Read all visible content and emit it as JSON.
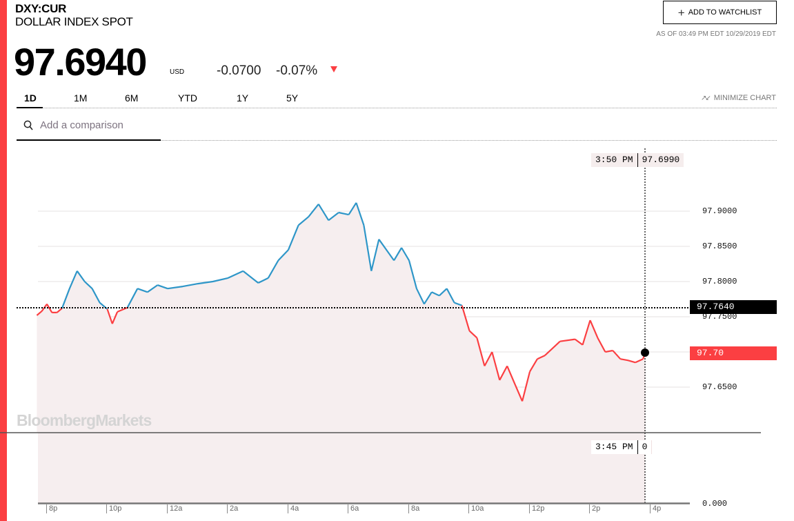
{
  "header": {
    "ticker": "DXY:CUR",
    "name": "DOLLAR INDEX SPOT",
    "price": "97.6940",
    "currency": "USD",
    "change": "-0.0700",
    "change_pct": "-0.07%",
    "direction": "down",
    "watchlist_label": "ADD TO WATCHLIST",
    "as_of": "AS OF 03:49 PM EDT 10/29/2019 EDT"
  },
  "tabs": [
    {
      "label": "1D",
      "active": true
    },
    {
      "label": "1M",
      "active": false
    },
    {
      "label": "6M",
      "active": false
    },
    {
      "label": "YTD",
      "active": false
    },
    {
      "label": "1Y",
      "active": false
    },
    {
      "label": "5Y",
      "active": false
    }
  ],
  "minimize_label": "MINIMIZE CHART",
  "compare": {
    "placeholder": "Add a comparison"
  },
  "tooltip_top": {
    "time": "3:50 PM",
    "value": "97.6990"
  },
  "tooltip_bottom": {
    "time": "3:45 PM",
    "value": "0"
  },
  "reference_label": "97.7640",
  "last_label": "97.70",
  "watermark": "BloombergMarkets",
  "colors": {
    "accent": "#fb3f42",
    "up_line": "#2e96c8",
    "down_line": "#fb3f42",
    "area_fill": "#f6eeef"
  },
  "chart_data": {
    "type": "line",
    "title": "DXY:CUR DOLLAR INDEX SPOT 1D",
    "xlabel": "",
    "ylabel": "",
    "x_ticks": [
      "8p",
      "10p",
      "12a",
      "2a",
      "4a",
      "6a",
      "8a",
      "10a",
      "12p",
      "2p",
      "4p"
    ],
    "y_ticks": [
      "97.9000",
      "97.8500",
      "97.8000",
      "97.7500",
      "97.7000",
      "97.6500"
    ],
    "ylim": [
      97.62,
      97.93
    ],
    "reference_line": 97.764,
    "last_value": 97.7,
    "volume_axis": {
      "ticks": [
        "0.000"
      ],
      "value_at_cursor": 0
    },
    "cursor": {
      "time": "3:50 PM",
      "value": 97.699
    },
    "series": [
      {
        "name": "DXY price",
        "x": [
          "7:40p",
          "7:50p",
          "8:00p",
          "8:10p",
          "8:20p",
          "8:30p",
          "8:45p",
          "9:00p",
          "9:15p",
          "9:30p",
          "9:45p",
          "10:00p",
          "10:10p",
          "10:20p",
          "10:40p",
          "11:00p",
          "11:20p",
          "11:40p",
          "12:00a",
          "12:30a",
          "1:00a",
          "1:30a",
          "2:00a",
          "2:30a",
          "3:00a",
          "3:20a",
          "3:40a",
          "4:00a",
          "4:20a",
          "4:40a",
          "5:00a",
          "5:20a",
          "5:40a",
          "6:00a",
          "6:15a",
          "6:30a",
          "6:45a",
          "7:00a",
          "7:15a",
          "7:30a",
          "7:45a",
          "8:00a",
          "8:15a",
          "8:30a",
          "8:45a",
          "9:00a",
          "9:15a",
          "9:30a",
          "9:45a",
          "10:00a",
          "10:15a",
          "10:30a",
          "10:45a",
          "11:00a",
          "11:15a",
          "11:30a",
          "11:45a",
          "12:00p",
          "12:15p",
          "12:30p",
          "1:00p",
          "1:30p",
          "1:45p",
          "2:00p",
          "2:15p",
          "2:30p",
          "2:45p",
          "3:00p",
          "3:15p",
          "3:30p",
          "3:45p",
          "3:50p"
        ],
        "values": [
          97.752,
          97.758,
          97.768,
          97.756,
          97.756,
          97.762,
          97.79,
          97.815,
          97.8,
          97.79,
          97.77,
          97.761,
          97.74,
          97.757,
          97.763,
          97.79,
          97.785,
          97.795,
          97.79,
          97.793,
          97.797,
          97.8,
          97.805,
          97.815,
          97.798,
          97.805,
          97.83,
          97.845,
          97.88,
          97.892,
          97.91,
          97.887,
          97.898,
          97.895,
          97.912,
          97.88,
          97.815,
          97.86,
          97.845,
          97.83,
          97.848,
          97.83,
          97.79,
          97.768,
          97.785,
          97.78,
          97.79,
          97.77,
          97.766,
          97.73,
          97.72,
          97.68,
          97.7,
          97.66,
          97.68,
          97.655,
          97.63,
          97.672,
          97.69,
          97.695,
          97.715,
          97.718,
          97.71,
          97.745,
          97.72,
          97.7,
          97.702,
          97.69,
          97.688,
          97.685,
          97.69,
          97.699
        ]
      }
    ]
  }
}
